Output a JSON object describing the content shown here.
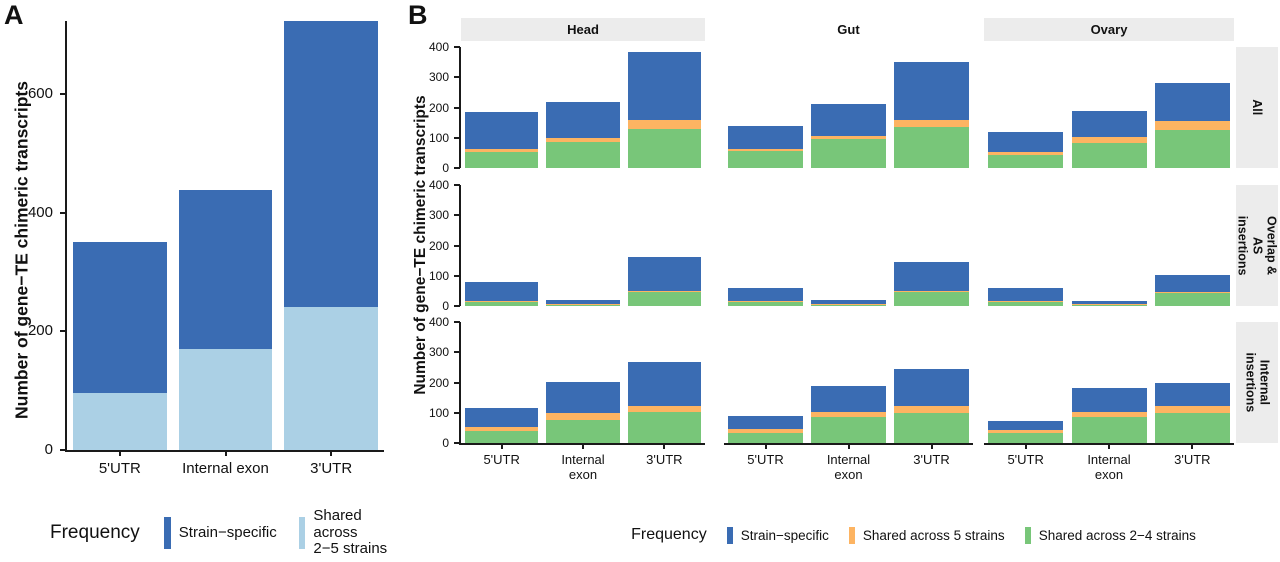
{
  "figure": {
    "panel_a_label": "A",
    "panel_b_label": "B"
  },
  "colors": {
    "strain_specific": "#3a6cb3",
    "shared_2_5_strains": "#abd0e5",
    "shared_5_strains": "#fdb462",
    "shared_2_4_strains": "#78c679",
    "strip_bg": "#ececec",
    "gut_strip_bg": "#ffffff",
    "axis": "#1a1a1a"
  },
  "chart_data": [
    {
      "id": "A",
      "type": "bar",
      "stacked": true,
      "categories": [
        "5'UTR",
        "Internal exon",
        "3'UTR"
      ],
      "series": [
        {
          "name": "Shared across 2−5 strains",
          "color_key": "shared_2_5_strains",
          "values": [
            96,
            171,
            241
          ]
        },
        {
          "name": "Strain−specific",
          "color_key": "strain_specific",
          "values": [
            255,
            267,
            482
          ]
        }
      ],
      "totals": [
        351,
        438,
        723
      ],
      "ylabel": "Number of gene−TE chimeric transcripts",
      "ylim": [
        0,
        723
      ],
      "yticks": [
        0,
        200,
        400,
        600
      ],
      "grid": false,
      "legend": {
        "title": "Frequency",
        "position": "bottom",
        "items": [
          {
            "label_lines": [
              "Strain−specific"
            ],
            "color_key": "strain_specific"
          },
          {
            "label_lines": [
              "Shared across",
              "2−5 strains"
            ],
            "color_key": "shared_2_5_strains"
          }
        ]
      }
    },
    {
      "id": "B",
      "type": "bar",
      "stacked": true,
      "facet_columns": [
        {
          "label": "Head",
          "strip": "grey"
        },
        {
          "label": "Gut",
          "strip": "white"
        },
        {
          "label": "Ovary",
          "strip": "grey"
        }
      ],
      "facet_rows": [
        {
          "label": "All",
          "label_lines": [
            "All"
          ]
        },
        {
          "label": "Overlap & AS insertions",
          "label_lines": [
            "Overlap &",
            "AS insertions"
          ]
        },
        {
          "label": "Internal insertions",
          "label_lines": [
            "Internal",
            "insertions"
          ]
        }
      ],
      "categories": [
        "5'UTR",
        "Internal exon",
        "3'UTR"
      ],
      "category_label_lines": [
        [
          "5'UTR"
        ],
        [
          "Internal",
          "exon"
        ],
        [
          "3'UTR"
        ]
      ],
      "segment_order": [
        "shared_2_4_strains",
        "shared_5_strains",
        "strain_specific"
      ],
      "series_labels": {
        "strain_specific": "Strain−specific",
        "shared_5_strains": "Shared across 5 strains",
        "shared_2_4_strains": "Shared across 2−4 strains"
      },
      "ylabel": "Number of gene−TE chimeric transcripts",
      "ylim": [
        0,
        400
      ],
      "yticks": [
        0,
        100,
        200,
        300,
        400
      ],
      "grid": false,
      "values": {
        "All": {
          "Head": [
            [
              52,
              10,
              123
            ],
            [
              85,
              15,
              118
            ],
            [
              130,
              28,
              225
            ]
          ],
          "Gut": [
            [
              55,
              8,
              77
            ],
            [
              95,
              12,
              103
            ],
            [
              135,
              23,
              194
            ]
          ],
          "Ovary": [
            [
              44,
              9,
              65
            ],
            [
              83,
              18,
              89
            ],
            [
              127,
              27,
              127
            ]
          ]
        },
        "Overlap & AS insertions": {
          "Head": [
            [
              14,
              2,
              63
            ],
            [
              5,
              1,
              15
            ],
            [
              45,
              3,
              115
            ]
          ],
          "Gut": [
            [
              15,
              2,
              42
            ],
            [
              6,
              1,
              13
            ],
            [
              48,
              3,
              94
            ]
          ],
          "Ovary": [
            [
              15,
              2,
              44
            ],
            [
              6,
              1,
              8
            ],
            [
              43,
              3,
              57
            ]
          ]
        },
        "Internal insertions": {
          "Head": [
            [
              41,
              11,
              63
            ],
            [
              76,
              22,
              105
            ],
            [
              104,
              18,
              145
            ]
          ],
          "Gut": [
            [
              34,
              12,
              43
            ],
            [
              85,
              18,
              85
            ],
            [
              98,
              24,
              122
            ]
          ],
          "Ovary": [
            [
              34,
              9,
              31
            ],
            [
              85,
              18,
              80
            ],
            [
              100,
              22,
              77
            ]
          ]
        }
      },
      "legend": {
        "title": "Frequency",
        "position": "bottom",
        "items": [
          {
            "label_lines": [
              "Strain−specific"
            ],
            "color_key": "strain_specific"
          },
          {
            "label_lines": [
              "Shared across 5 strains"
            ],
            "color_key": "shared_5_strains"
          },
          {
            "label_lines": [
              "Shared across 2−4 strains"
            ],
            "color_key": "shared_2_4_strains"
          }
        ]
      }
    }
  ]
}
